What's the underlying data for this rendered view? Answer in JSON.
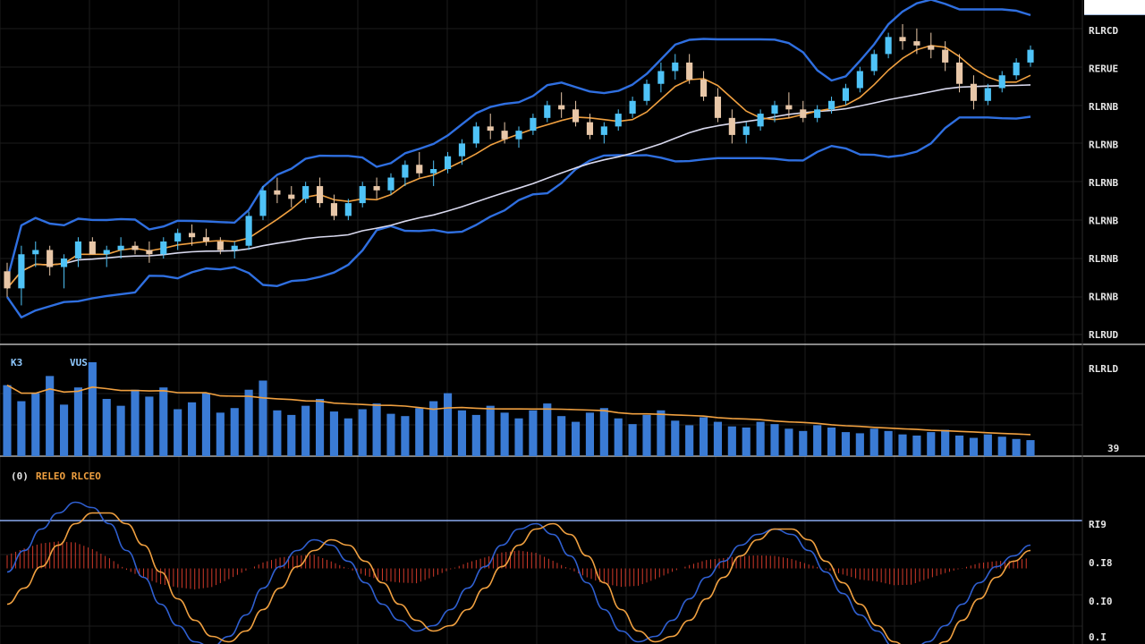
{
  "colors": {
    "background": "#000000",
    "grid": "#1c1c1c",
    "separator": "#d8d8d8",
    "candle_up": "#4fc3f7",
    "candle_down": "#e8c7a8",
    "bollinger": "#2f6fe0",
    "ma_fast": "#f0a040",
    "ma_slow": "#d9d9ee",
    "volume_bar": "#3a7bd5",
    "volume_ma": "#f0a040",
    "macd_line": "#2f5fd0",
    "signal_line": "#f0a040",
    "histogram": "#d23a2a",
    "indicator_ref": "#8aaaf0"
  },
  "header": {
    "logo_text_1": "",
    "logo_text_2": ""
  },
  "volume_tag": {
    "left": "K3",
    "right": "VUS"
  },
  "indicator_tag": {
    "left": "(0)",
    "right": "RELEO RLCEO"
  },
  "chart_data": {
    "type": "candlestick",
    "title": "",
    "price_axis_labels": [
      "RLRCD",
      "RERUE",
      "RLRNB",
      "RLRNB",
      "RLRNB",
      "RLRNB",
      "RLRNB",
      "RLRNB",
      "RLRUD"
    ],
    "volume_axis_labels": [
      "RLRLD",
      "39"
    ],
    "indicator_axis_labels": [
      "RI9",
      "0.I8",
      "0.I0",
      "0.I"
    ],
    "ohlc": [
      [
        96,
        98,
        90,
        92
      ],
      [
        92,
        102,
        88,
        100
      ],
      [
        100,
        103,
        97,
        101
      ],
      [
        101,
        102,
        95,
        97
      ],
      [
        97,
        100,
        92,
        99
      ],
      [
        99,
        104,
        97,
        103
      ],
      [
        103,
        104,
        100,
        100
      ],
      [
        100,
        102,
        97,
        101
      ],
      [
        101,
        104,
        99,
        102
      ],
      [
        102,
        103,
        100,
        101
      ],
      [
        101,
        103,
        98,
        100
      ],
      [
        100,
        104,
        99,
        103
      ],
      [
        103,
        106,
        101,
        105
      ],
      [
        105,
        107,
        102,
        104
      ],
      [
        104,
        106,
        102,
        103
      ],
      [
        103,
        104,
        100,
        101
      ],
      [
        101,
        103,
        99,
        102
      ],
      [
        102,
        110,
        101,
        109
      ],
      [
        109,
        116,
        108,
        115
      ],
      [
        115,
        118,
        112,
        114
      ],
      [
        114,
        116,
        111,
        113
      ],
      [
        113,
        117,
        112,
        116
      ],
      [
        116,
        118,
        111,
        112
      ],
      [
        112,
        114,
        108,
        109
      ],
      [
        109,
        113,
        108,
        112
      ],
      [
        112,
        117,
        111,
        116
      ],
      [
        116,
        118,
        113,
        115
      ],
      [
        115,
        119,
        114,
        118
      ],
      [
        118,
        122,
        116,
        121
      ],
      [
        121,
        124,
        118,
        119
      ],
      [
        119,
        122,
        116,
        120
      ],
      [
        120,
        124,
        119,
        123
      ],
      [
        123,
        127,
        121,
        126
      ],
      [
        126,
        131,
        125,
        130
      ],
      [
        130,
        133,
        127,
        129
      ],
      [
        129,
        131,
        126,
        127
      ],
      [
        127,
        130,
        125,
        129
      ],
      [
        129,
        133,
        128,
        132
      ],
      [
        132,
        136,
        131,
        135
      ],
      [
        135,
        138,
        132,
        134
      ],
      [
        134,
        136,
        130,
        131
      ],
      [
        131,
        133,
        127,
        128
      ],
      [
        128,
        131,
        126,
        130
      ],
      [
        130,
        134,
        129,
        133
      ],
      [
        133,
        137,
        132,
        136
      ],
      [
        136,
        141,
        135,
        140
      ],
      [
        140,
        145,
        138,
        143
      ],
      [
        143,
        147,
        141,
        145
      ],
      [
        145,
        147,
        140,
        141
      ],
      [
        141,
        143,
        136,
        137
      ],
      [
        137,
        139,
        131,
        132
      ],
      [
        132,
        134,
        126,
        128
      ],
      [
        128,
        131,
        126,
        130
      ],
      [
        130,
        134,
        129,
        133
      ],
      [
        133,
        136,
        131,
        135
      ],
      [
        135,
        138,
        132,
        134
      ],
      [
        134,
        136,
        131,
        132
      ],
      [
        132,
        135,
        131,
        134
      ],
      [
        134,
        137,
        133,
        136
      ],
      [
        136,
        140,
        135,
        139
      ],
      [
        139,
        144,
        138,
        143
      ],
      [
        143,
        148,
        142,
        147
      ],
      [
        147,
        152,
        146,
        151
      ],
      [
        151,
        154,
        148,
        150
      ],
      [
        150,
        153,
        147,
        149
      ],
      [
        149,
        152,
        146,
        148
      ],
      [
        148,
        150,
        143,
        145
      ],
      [
        145,
        147,
        138,
        140
      ],
      [
        140,
        142,
        134,
        136
      ],
      [
        136,
        140,
        135,
        139
      ],
      [
        139,
        143,
        138,
        142
      ],
      [
        142,
        146,
        141,
        145
      ],
      [
        145,
        149,
        144,
        148
      ]
    ],
    "volume": [
      62,
      48,
      55,
      70,
      45,
      60,
      82,
      50,
      44,
      58,
      52,
      60,
      41,
      47,
      55,
      38,
      42,
      58,
      66,
      40,
      36,
      44,
      50,
      39,
      33,
      41,
      46,
      37,
      35,
      42,
      48,
      55,
      40,
      36,
      44,
      38,
      33,
      40,
      46,
      35,
      30,
      38,
      42,
      33,
      28,
      36,
      40,
      31,
      27,
      34,
      30,
      26,
      25,
      30,
      28,
      24,
      22,
      27,
      25,
      21,
      20,
      24,
      22,
      19,
      18,
      21,
      23,
      18,
      16,
      19,
      17,
      15,
      14
    ],
    "indicator": {
      "macd": [
        0.2,
        0.6,
        1.0,
        1.3,
        1.5,
        1.4,
        1.1,
        0.6,
        0.1,
        -0.4,
        -0.8,
        -1.1,
        -1.2,
        -1.0,
        -0.6,
        -0.1,
        0.3,
        0.6,
        0.8,
        0.7,
        0.4,
        0.0,
        -0.4,
        -0.7,
        -0.9,
        -0.8,
        -0.5,
        -0.1,
        0.3,
        0.7,
        1.0,
        1.1,
        0.9,
        0.5,
        0.0,
        -0.5,
        -0.9,
        -1.1,
        -1.0,
        -0.7,
        -0.3,
        0.1,
        0.4,
        0.7,
        0.9,
        1.0,
        0.9,
        0.6,
        0.2,
        -0.2,
        -0.6,
        -0.9,
        -1.2,
        -1.3,
        -1.1,
        -0.8,
        -0.4,
        0.0,
        0.3,
        0.5,
        0.7
      ],
      "signal": [
        -0.4,
        -0.1,
        0.3,
        0.7,
        1.1,
        1.3,
        1.3,
        1.1,
        0.7,
        0.2,
        -0.3,
        -0.7,
        -1.0,
        -1.1,
        -0.9,
        -0.5,
        -0.1,
        0.3,
        0.6,
        0.8,
        0.7,
        0.4,
        0.0,
        -0.4,
        -0.7,
        -0.9,
        -0.8,
        -0.5,
        -0.1,
        0.3,
        0.7,
        1.0,
        1.1,
        0.9,
        0.5,
        0.0,
        -0.5,
        -0.9,
        -1.1,
        -1.0,
        -0.7,
        -0.3,
        0.1,
        0.5,
        0.8,
        1.0,
        1.0,
        0.8,
        0.4,
        0.0,
        -0.4,
        -0.8,
        -1.1,
        -1.3,
        -1.3,
        -1.1,
        -0.7,
        -0.3,
        0.1,
        0.4,
        0.6
      ]
    }
  }
}
